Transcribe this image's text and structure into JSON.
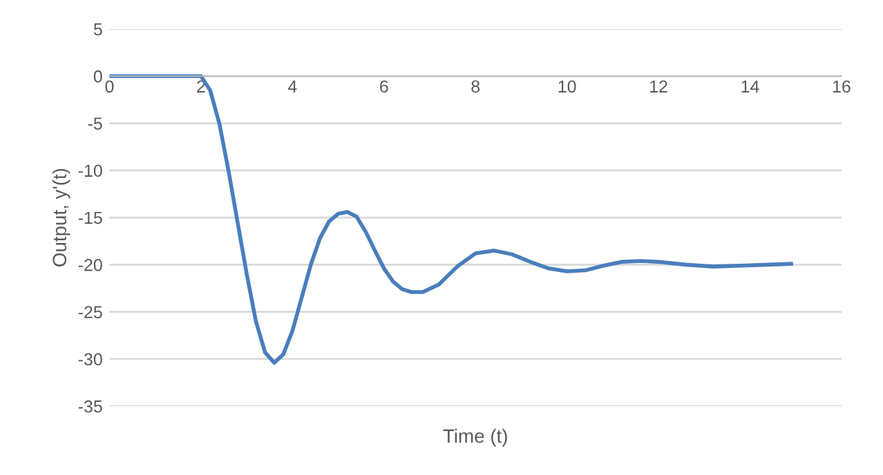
{
  "chart_data": {
    "type": "line",
    "xlabel": "Time (t)",
    "ylabel": "Output, y'(t)",
    "xlim": [
      0,
      16
    ],
    "xticks": [
      0,
      2,
      4,
      6,
      8,
      10,
      12,
      14,
      16
    ],
    "ylim": [
      -35,
      5
    ],
    "yticks": [
      -35,
      -30,
      -25,
      -20,
      -15,
      -10,
      -5,
      0,
      5
    ],
    "grid": "y",
    "marker": "none",
    "line_style": "solid",
    "series": [
      {
        "color": "#4a7ebb",
        "x": [
          0,
          1,
          2,
          2.2,
          2.4,
          2.6,
          2.8,
          3.0,
          3.2,
          3.4,
          3.6,
          3.8,
          4.0,
          4.2,
          4.4,
          4.6,
          4.8,
          5.0,
          5.2,
          5.4,
          5.6,
          5.8,
          6.0,
          6.2,
          6.4,
          6.6,
          6.85,
          7.2,
          7.6,
          8.0,
          8.4,
          8.8,
          9.2,
          9.6,
          10.0,
          10.4,
          10.8,
          11.2,
          11.6,
          12.0,
          12.6,
          13.2,
          13.8,
          14.4,
          14.9
        ],
        "values": [
          0,
          0,
          0,
          -1.5,
          -5,
          -10,
          -15.5,
          -21,
          -26,
          -29.3,
          -30.4,
          -29.5,
          -27,
          -23.5,
          -20,
          -17.2,
          -15.4,
          -14.6,
          -14.4,
          -14.9,
          -16.5,
          -18.5,
          -20.4,
          -21.8,
          -22.6,
          -22.9,
          -22.9,
          -22.1,
          -20.2,
          -18.8,
          -18.5,
          -18.9,
          -19.7,
          -20.4,
          -20.7,
          -20.6,
          -20.1,
          -19.7,
          -19.6,
          -19.7,
          -20.0,
          -20.2,
          -20.1,
          -20.0,
          -19.9
        ]
      }
    ]
  }
}
